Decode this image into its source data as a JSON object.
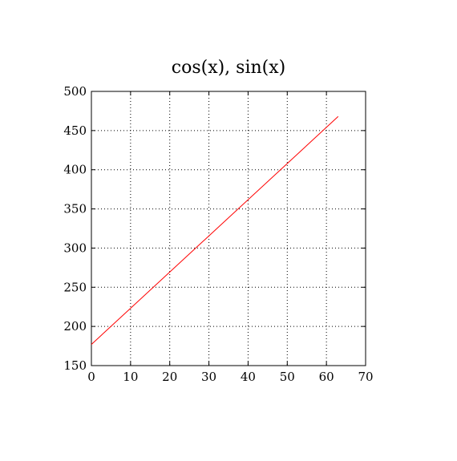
{
  "chart_data": {
    "type": "line",
    "title": "cos(x), sin(x)",
    "xlabel": "",
    "ylabel": "",
    "xlim": [
      0,
      70
    ],
    "ylim": [
      150,
      500
    ],
    "xticks": [
      0,
      10,
      20,
      30,
      40,
      50,
      60,
      70
    ],
    "yticks": [
      150,
      200,
      250,
      300,
      350,
      400,
      450,
      500
    ],
    "xtick_labels": [
      "0",
      "10",
      "20",
      "30",
      "40",
      "50",
      "60",
      "70"
    ],
    "ytick_labels": [
      "150",
      "200",
      "250",
      "300",
      "350",
      "400",
      "450",
      "500"
    ],
    "grid": true,
    "grid_style": "dotted",
    "series": [
      {
        "color": "#ff0000",
        "x": [
          0,
          63
        ],
        "y": [
          177,
          468
        ]
      }
    ]
  }
}
